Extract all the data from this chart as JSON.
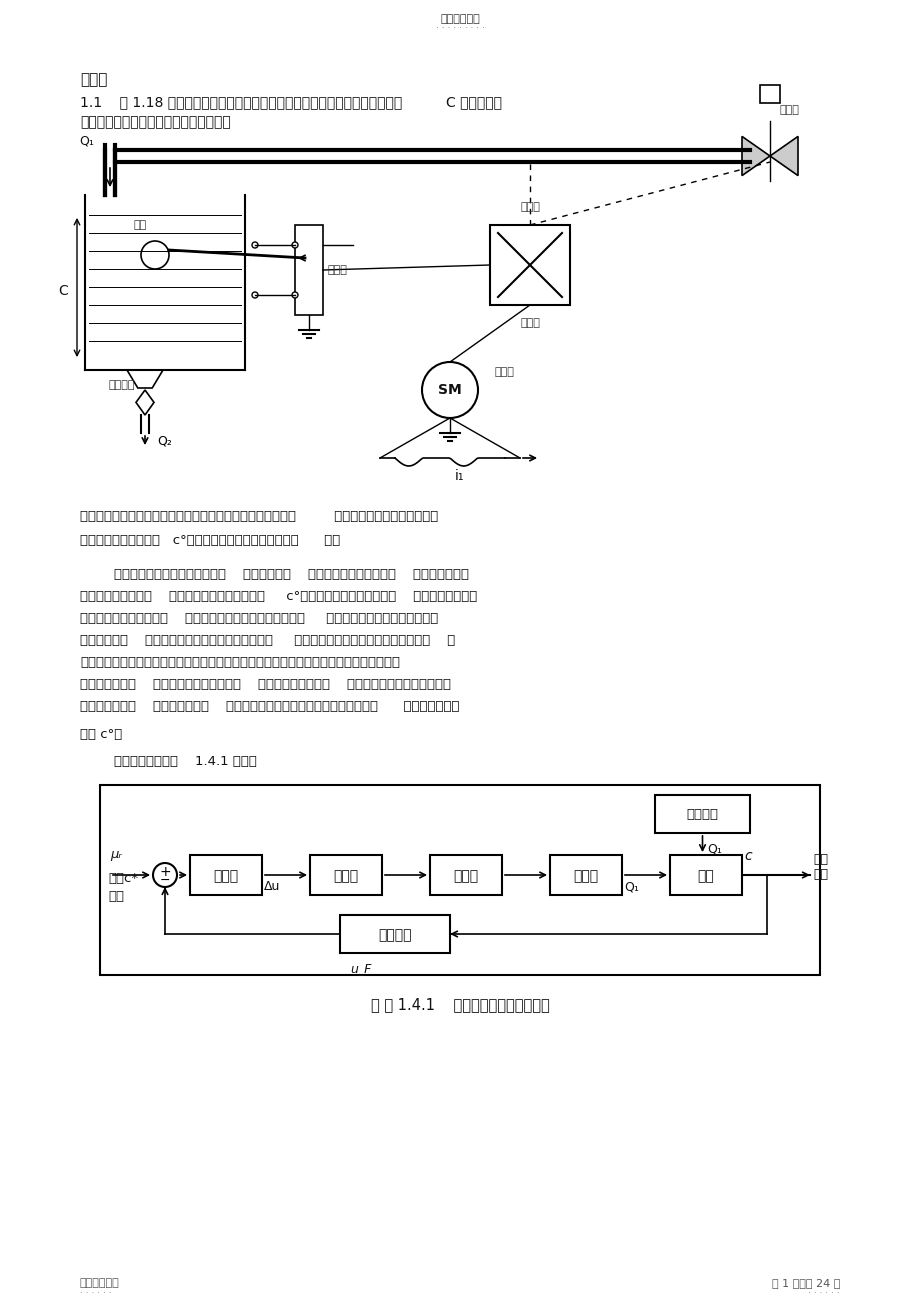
{
  "bg_color": "#ffffff",
  "header_text": "精选学习资料",
  "header_dots": "· · · · · · · · ·",
  "footer_left": "名师归纳总结",
  "footer_left_dots": "· · · · · ·",
  "footer_right": "第 1 页，共 24 页",
  "footer_right_dots": "· · · · · ·",
  "chapter_title": "第一章",
  "section_11": "1.1    图 1.18 是液位自动控制系统原理示意图。在任意情况下，希望液面高度          C 维持不变，",
  "section_11b": "试说明系统工作原理并画出系统方块图。",
  "sol1": "解：系统的控制任务是保持液面高度不变。水箱是被控对象，         水箱液位是被控变量。电位器",
  "sol2": "用来设置期望液位高度   c°（通常点位器的上下位移来实现      ）。",
  "sol3": "        当电位器电刷位于中点位置时，    电动机不动，    控制阀门有一定的开度，    使水箱的流入水",
  "sol4": "量与流出水量相等，    从而使液面保持在希望高度     c°上。一旦流出水量发生变化    （相当于扰动），",
  "sol5": "例如当流出水量减小时，    液面升高，浮子位置也相应升高，     通过杠杆作用使电位器电刷从中",
  "sol6": "点位置下移，    从而给电动机提供一定的控制电压，     驱动电动机通过减速器减小阀门开度，    使",
  "sol7": "进入水箱的液体流量减少。这时，水箱液位下降，浮子位置相应下降，直到电位器电刷回到",
  "sol8": "中点位置为止，    系统重新处于平衡状态，    液位恢复给定高度。    反之，当流出水量在平衡状态",
  "sol9": "基础上增大时，    水箱液位下降，    系统会自动增大阀门开度，加大流入水量，      使液位升到给定",
  "sol10": "高度 c°。",
  "sol11": "        系统方框图如图解    1.4.1 所示。",
  "blockdiag_caption": "图 解 1.4.1    液位自动控制系统方框图"
}
